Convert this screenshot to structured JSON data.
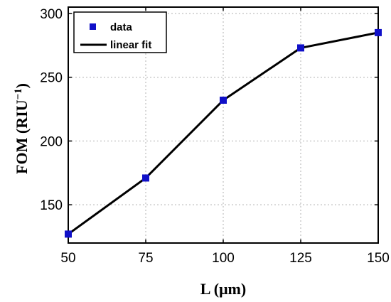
{
  "chart_data": {
    "type": "line",
    "x": [
      50,
      75,
      100,
      125,
      150
    ],
    "series": [
      {
        "name": "data",
        "marker": "square",
        "color": "#1010c8",
        "values": [
          127,
          171,
          232,
          273,
          285
        ]
      },
      {
        "name": "linear fit",
        "marker": "none",
        "color": "#000000",
        "values": [
          127,
          171,
          232,
          273,
          285
        ]
      }
    ],
    "xlabel": "L (μm)",
    "ylabel_main": "FOM (RIU",
    "ylabel_sup": "−1",
    "ylabel_close": ")",
    "xlim": [
      50,
      150
    ],
    "ylim": [
      120,
      305
    ],
    "xticks": [
      50,
      75,
      100,
      125,
      150
    ],
    "yticks": [
      150,
      200,
      250,
      300
    ],
    "grid": true,
    "legend_position": "top-left"
  }
}
